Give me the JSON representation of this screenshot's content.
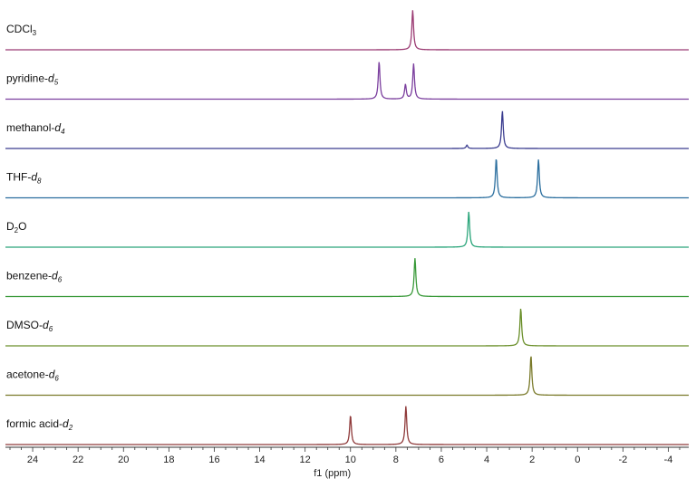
{
  "chart_data": {
    "type": "line",
    "xlabel": "f1 (ppm)",
    "xlim": [
      25.2,
      -4.9
    ],
    "x_ticks": [
      24,
      22,
      20,
      18,
      16,
      14,
      12,
      10,
      8,
      6,
      4,
      2,
      0,
      -2,
      -4
    ],
    "x_tick_labels": [
      "24",
      "22",
      "20",
      "18",
      "16",
      "14",
      "12",
      "10",
      "8",
      "6",
      "4",
      "2",
      "0",
      "-2",
      "-4"
    ],
    "series": [
      {
        "name": "CDCl3",
        "label_prefix": "CDCl",
        "label_sub": "3",
        "label_italic_sub": false,
        "label_suffix": "",
        "color": "#9b3b73",
        "peaks": [
          {
            "ppm": 7.26,
            "height": 0.95
          }
        ]
      },
      {
        "name": "pyridine-d5",
        "label_prefix": "pyridine-",
        "label_sub": "d5",
        "label_italic_sub": true,
        "label_suffix": "",
        "color": "#7b3f9e",
        "peaks": [
          {
            "ppm": 8.74,
            "height": 0.9
          },
          {
            "ppm": 7.58,
            "height": 0.35
          },
          {
            "ppm": 7.22,
            "height": 0.85
          }
        ]
      },
      {
        "name": "methanol-d4",
        "label_prefix": "methanol-",
        "label_sub": "d4",
        "label_italic_sub": true,
        "label_suffix": "",
        "color": "#3a3c8f",
        "peaks": [
          {
            "ppm": 4.87,
            "height": 0.08
          },
          {
            "ppm": 3.31,
            "height": 0.9
          }
        ]
      },
      {
        "name": "THF-d8",
        "label_prefix": "THF-",
        "label_sub": "d8",
        "label_italic_sub": true,
        "label_suffix": "",
        "color": "#2a6e9e",
        "peaks": [
          {
            "ppm": 3.58,
            "height": 0.95
          },
          {
            "ppm": 1.72,
            "height": 0.92
          }
        ]
      },
      {
        "name": "D2O",
        "label_prefix": "D",
        "label_sub": "2",
        "label_italic_sub": false,
        "label_suffix": "O",
        "color": "#2aa57a",
        "peaks": [
          {
            "ppm": 4.79,
            "height": 0.85
          }
        ]
      },
      {
        "name": "benzene-d6",
        "label_prefix": "benzene-",
        "label_sub": "d6",
        "label_italic_sub": true,
        "label_suffix": "",
        "color": "#3a9a3a",
        "peaks": [
          {
            "ppm": 7.16,
            "height": 0.92
          }
        ]
      },
      {
        "name": "DMSO-d6",
        "label_prefix": "DMSO-",
        "label_sub": "d6",
        "label_italic_sub": true,
        "label_suffix": "",
        "color": "#6a8f2a",
        "peaks": [
          {
            "ppm": 2.5,
            "height": 0.9
          }
        ]
      },
      {
        "name": "acetone-d6",
        "label_prefix": "acetone-",
        "label_sub": "d6",
        "label_italic_sub": true,
        "label_suffix": "",
        "color": "#7a7a2a",
        "peaks": [
          {
            "ppm": 2.05,
            "height": 0.95
          }
        ]
      },
      {
        "name": "formic acid-d2",
        "label_prefix": "formic acid-",
        "label_sub": "d2",
        "label_italic_sub": true,
        "label_suffix": "",
        "color": "#8f3a3a",
        "peaks": [
          {
            "ppm": 10.0,
            "height": 0.7
          },
          {
            "ppm": 7.56,
            "height": 0.92
          }
        ]
      }
    ]
  }
}
